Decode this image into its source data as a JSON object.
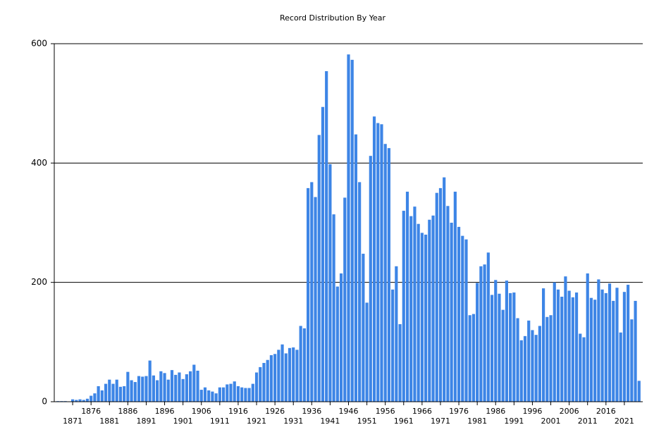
{
  "chart_data": {
    "type": "bar",
    "title": "Record Distribution By Year",
    "color": "#3d85e6",
    "grid": true,
    "x": [
      1867,
      1868,
      1869,
      1870,
      1871,
      1872,
      1873,
      1874,
      1875,
      1876,
      1877,
      1878,
      1879,
      1880,
      1881,
      1882,
      1883,
      1884,
      1885,
      1886,
      1887,
      1888,
      1889,
      1890,
      1891,
      1892,
      1893,
      1894,
      1895,
      1896,
      1897,
      1898,
      1899,
      1900,
      1901,
      1902,
      1903,
      1904,
      1905,
      1906,
      1907,
      1908,
      1909,
      1910,
      1911,
      1912,
      1913,
      1914,
      1915,
      1916,
      1917,
      1918,
      1919,
      1920,
      1921,
      1922,
      1923,
      1924,
      1925,
      1926,
      1927,
      1928,
      1929,
      1930,
      1931,
      1932,
      1933,
      1934,
      1935,
      1936,
      1937,
      1938,
      1939,
      1940,
      1941,
      1942,
      1943,
      1944,
      1945,
      1946,
      1947,
      1948,
      1949,
      1950,
      1951,
      1952,
      1953,
      1954,
      1955,
      1956,
      1957,
      1958,
      1959,
      1960,
      1961,
      1962,
      1963,
      1964,
      1965,
      1966,
      1967,
      1968,
      1969,
      1970,
      1971,
      1972,
      1973,
      1974,
      1975,
      1976,
      1977,
      1978,
      1979,
      1980,
      1981,
      1982,
      1983,
      1984,
      1985,
      1986,
      1987,
      1988,
      1989,
      1990,
      1991,
      1992,
      1993,
      1994,
      1995,
      1996,
      1997,
      1998,
      1999,
      2000,
      2001,
      2002,
      2003,
      2004,
      2005,
      2006,
      2007,
      2008,
      2009,
      2010,
      2011,
      2012,
      2013,
      2014,
      2015,
      2016,
      2017,
      2018,
      2019,
      2020,
      2021,
      2022,
      2023,
      2024,
      2025
    ],
    "values": [
      1,
      1,
      1,
      0,
      4,
      3,
      4,
      3,
      5,
      10,
      14,
      26,
      19,
      30,
      37,
      30,
      37,
      25,
      26,
      50,
      36,
      33,
      43,
      42,
      43,
      69,
      44,
      36,
      51,
      48,
      37,
      53,
      45,
      49,
      38,
      46,
      51,
      62,
      52,
      20,
      24,
      19,
      17,
      14,
      24,
      24,
      29,
      30,
      34,
      26,
      24,
      23,
      23,
      30,
      49,
      58,
      65,
      70,
      78,
      80,
      87,
      96,
      81,
      90,
      91,
      87,
      127,
      123,
      358,
      368,
      343,
      447,
      494,
      554,
      398,
      314,
      193,
      215,
      342,
      582,
      573,
      448,
      368,
      248,
      166,
      412,
      478,
      467,
      465,
      432,
      425,
      188,
      227,
      130,
      320,
      352,
      311,
      327,
      298,
      283,
      280,
      305,
      312,
      350,
      358,
      376,
      328,
      300,
      352,
      293,
      278,
      272,
      145,
      147,
      199,
      227,
      230,
      250,
      179,
      204,
      181,
      154,
      203,
      182,
      183,
      140,
      103,
      110,
      136,
      120,
      112,
      127,
      190,
      142,
      145,
      200,
      188,
      176,
      210,
      186,
      175,
      183,
      114,
      108,
      215,
      174,
      171,
      205,
      188,
      182,
      198,
      169,
      191,
      116,
      184,
      196,
      138,
      169,
      35
    ],
    "xlim": [
      1866,
      2026
    ],
    "xticks": [
      1871,
      1876,
      1881,
      1886,
      1891,
      1896,
      1901,
      1906,
      1911,
      1916,
      1921,
      1926,
      1931,
      1936,
      1941,
      1946,
      1951,
      1956,
      1961,
      1966,
      1971,
      1976,
      1981,
      1986,
      1991,
      1996,
      2001,
      2006,
      2011,
      2016,
      2021
    ],
    "ylim": [
      0,
      600
    ],
    "yticks": [
      0,
      200,
      400,
      600
    ]
  }
}
